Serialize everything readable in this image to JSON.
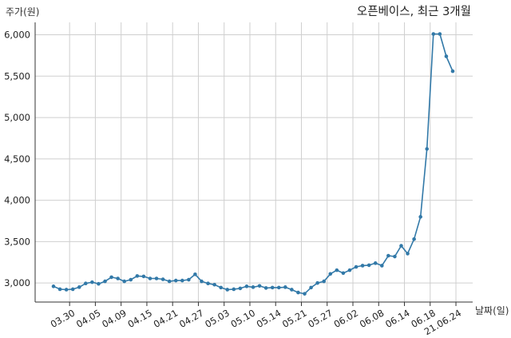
{
  "chart_data": {
    "type": "line",
    "title": "오픈베이스, 최근 3개월",
    "ylabel": "주가(원)",
    "xlabel": "날짜(일)",
    "ylim": [
      2770,
      6150
    ],
    "grid": true,
    "legend": "none",
    "y_ticks": [
      3000,
      3500,
      4000,
      4500,
      5000,
      5500,
      6000
    ],
    "y_tick_labels": [
      "3,000",
      "3,500",
      "4,000",
      "4,500",
      "5,000",
      "5,500",
      "6,000"
    ],
    "x_tick_labels": [
      "03.30",
      "04.05",
      "04.09",
      "04.15",
      "04.21",
      "04.27",
      "05.03",
      "05.10",
      "05.14",
      "05.21",
      "05.27",
      "06.02",
      "06.08",
      "06.14",
      "06.18",
      "21.06.24"
    ],
    "x_tick_positions": [
      2.5,
      6.5,
      10.5,
      14.5,
      18.5,
      22.5,
      26.5,
      30.5,
      34.5,
      38.5,
      42.5,
      46.5,
      50.5,
      54.5,
      58.5,
      62.5
    ],
    "series": [
      {
        "color": "#3279a8",
        "values": [
          2960,
          2925,
          2920,
          2925,
          2950,
          2995,
          3010,
          2990,
          3020,
          3070,
          3055,
          3020,
          3040,
          3085,
          3080,
          3055,
          3055,
          3045,
          3020,
          3030,
          3030,
          3040,
          3105,
          3020,
          2995,
          2980,
          2945,
          2920,
          2925,
          2935,
          2960,
          2950,
          2965,
          2940,
          2945,
          2945,
          2950,
          2920,
          2885,
          2870,
          2945,
          3000,
          3020,
          3110,
          3155,
          3120,
          3155,
          3195,
          3210,
          3215,
          3240,
          3210,
          3330,
          3320,
          3450,
          3355,
          3530,
          3800,
          4620,
          6010,
          6010,
          5740,
          5560
        ]
      }
    ]
  }
}
